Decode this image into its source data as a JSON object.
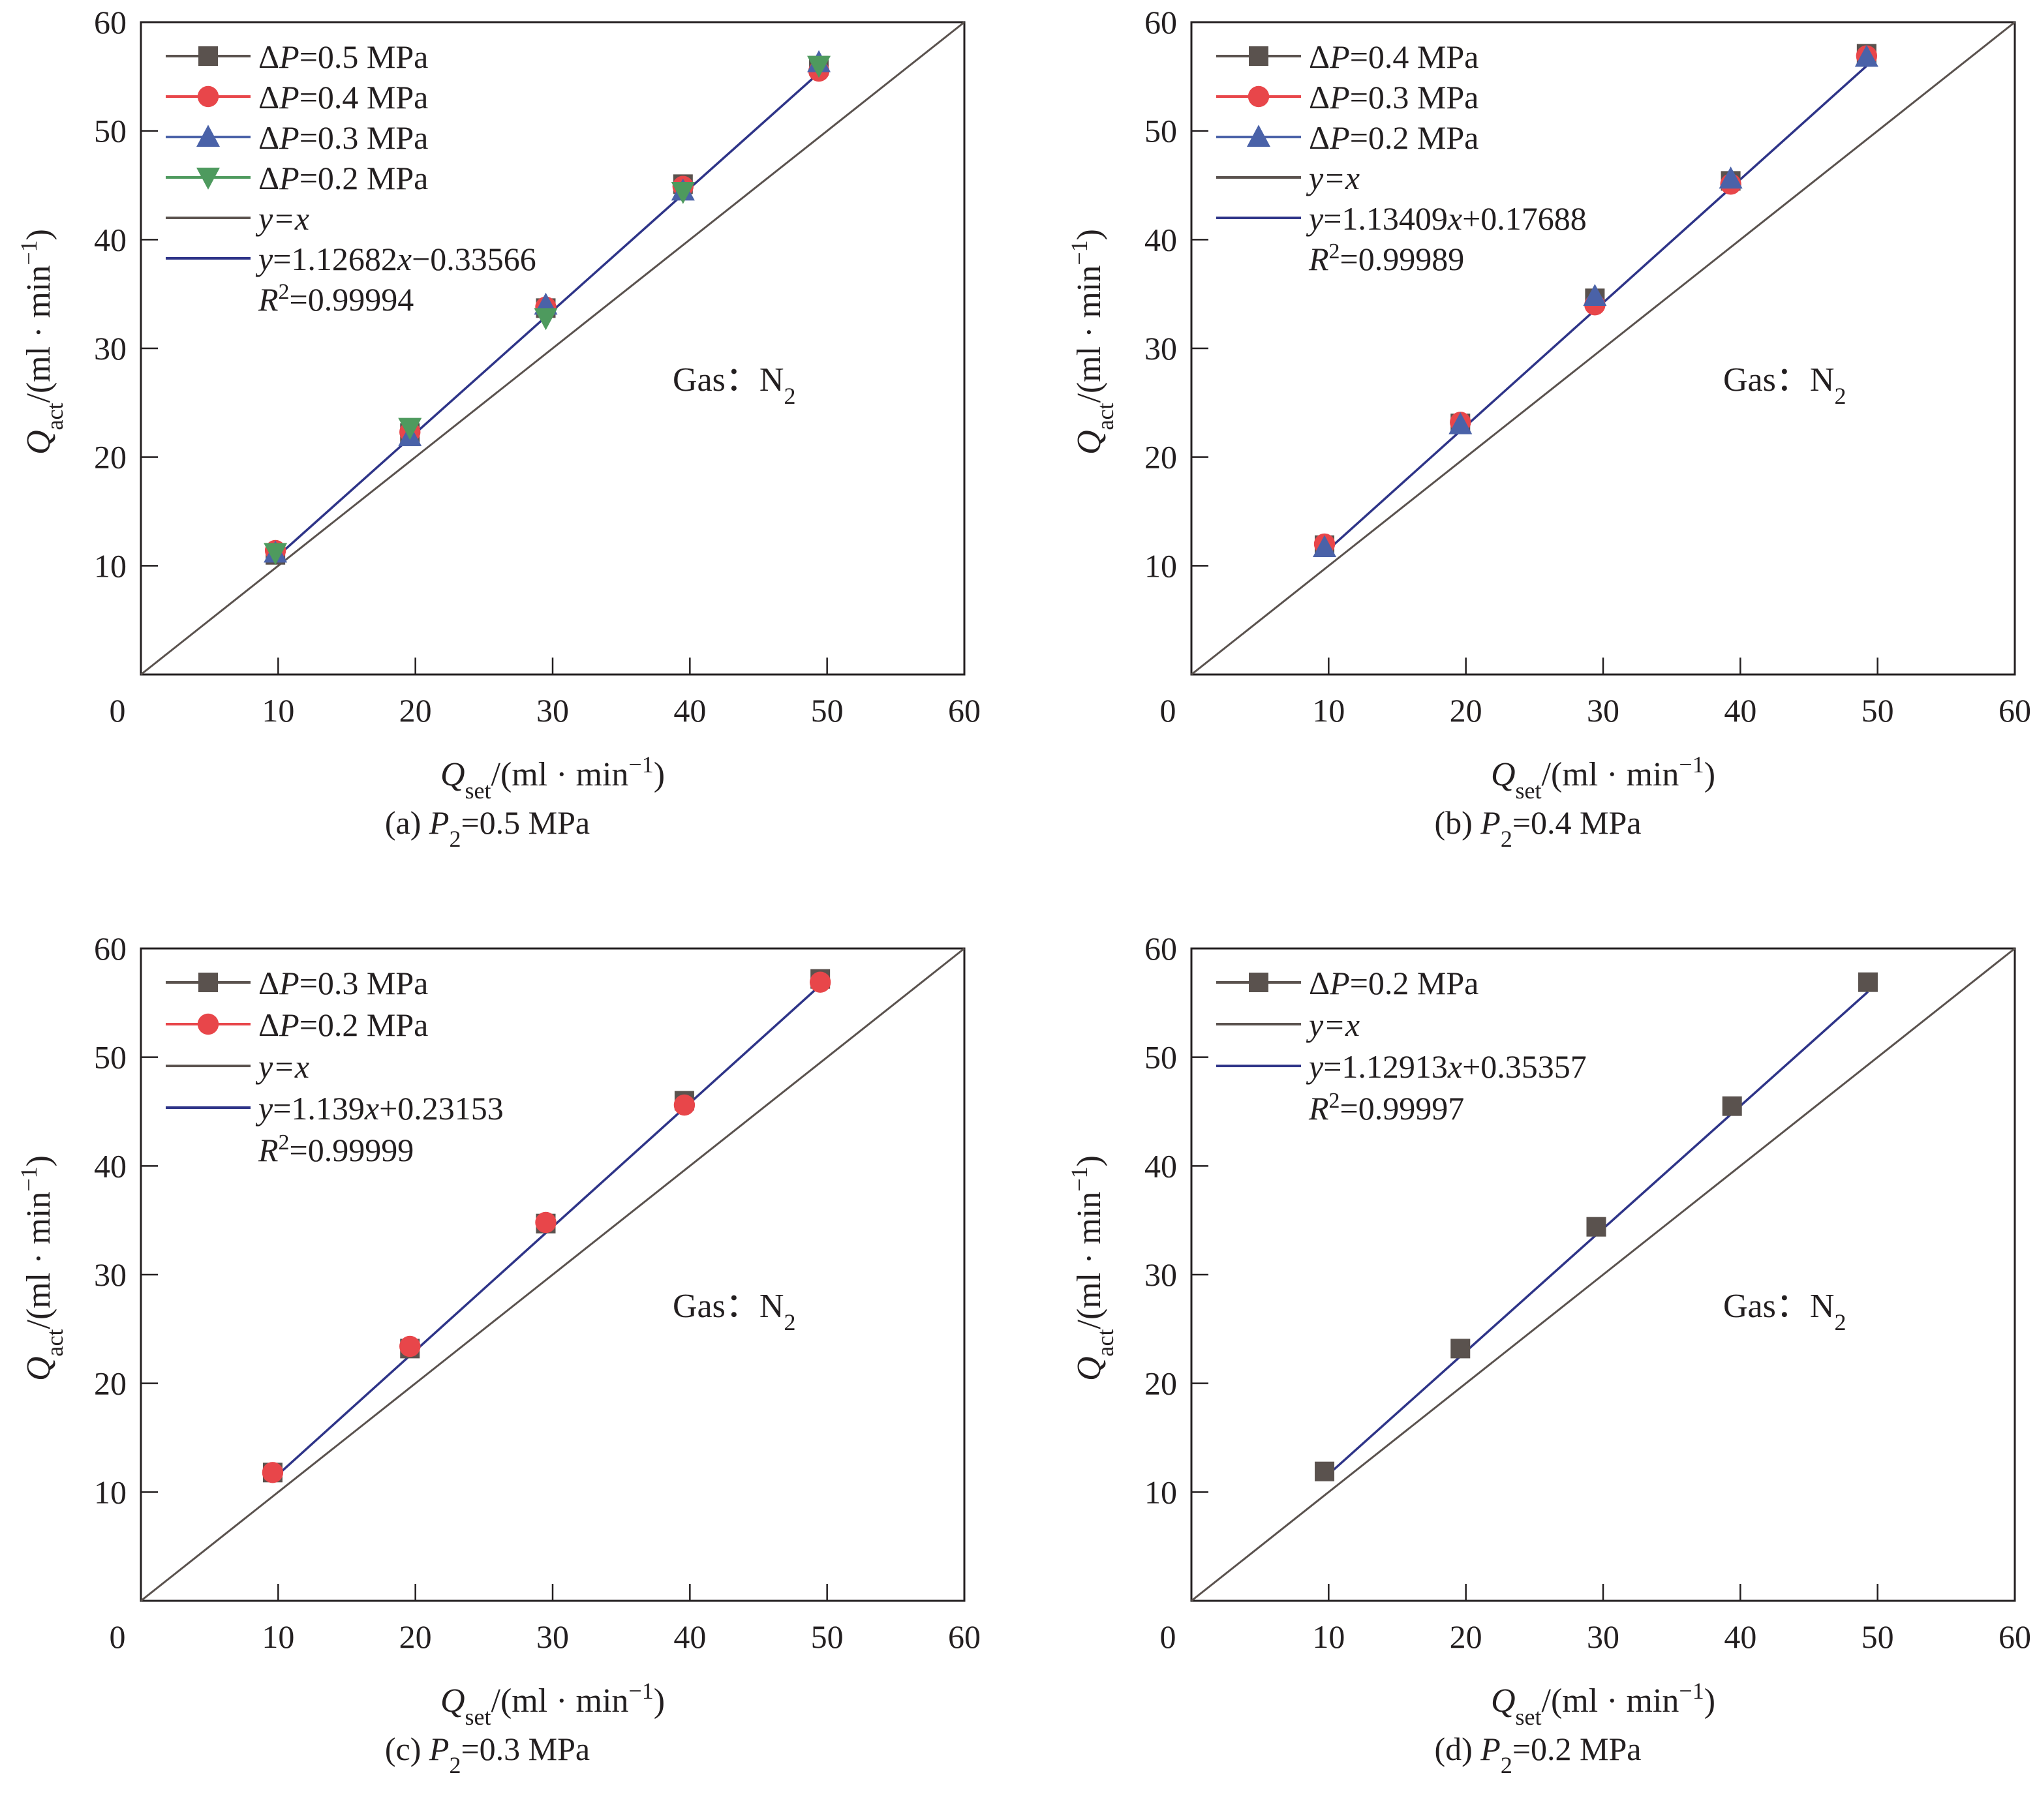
{
  "figure": {
    "panel_ids": [
      "a",
      "b",
      "c",
      "d"
    ]
  },
  "colors": {
    "square": "#5a524e",
    "circle": "#e8464a",
    "triangle_up": "#4a62a8",
    "triangle_down": "#4e9a5e",
    "identity_line": "#5a524e",
    "fit_line": "#2e3488",
    "axis": "#231f20"
  },
  "chart_data": [
    {
      "type": "scatter",
      "panel": "a",
      "caption": {
        "prefix": "(a) ",
        "var": "P",
        "sub": "2",
        "suffix": "=0.5 MPa"
      },
      "xlabel": {
        "var": "Q",
        "sub": "set",
        "unit": "/(ml · min",
        "sup": "−1",
        "close": ")"
      },
      "ylabel": {
        "var": "Q",
        "sub": "act",
        "unit": "/(ml · min",
        "sup": "−1",
        "close": ")"
      },
      "xlim": [
        0,
        60
      ],
      "ylim": [
        0,
        60
      ],
      "xticks": [
        "0",
        "10",
        "20",
        "30",
        "40",
        "50",
        "60"
      ],
      "yticks": [
        "10",
        "20",
        "30",
        "40",
        "50",
        "60"
      ],
      "grid": false,
      "legend_position": "top-left",
      "annotation": {
        "text": "Gas：N",
        "sub": "2"
      },
      "x": [
        9.8,
        19.6,
        29.5,
        39.5,
        49.4
      ],
      "series": [
        {
          "name": "ΔP=0.5 MPa",
          "marker": "square",
          "values": [
            11.0,
            22.2,
            33.7,
            45.1,
            56.0
          ]
        },
        {
          "name": "ΔP=0.4 MPa",
          "marker": "circle",
          "values": [
            11.4,
            22.3,
            33.8,
            44.9,
            55.5
          ]
        },
        {
          "name": "ΔP=0.3 MPa",
          "marker": "triangle_up",
          "values": [
            11.2,
            21.9,
            34.0,
            44.5,
            56.3
          ]
        },
        {
          "name": "ΔP=0.2 MPa",
          "marker": "triangle_down",
          "values": [
            11.2,
            22.7,
            32.8,
            44.4,
            56.0
          ]
        }
      ],
      "identity": {
        "label": "y=x"
      },
      "fit": {
        "label": "y=1.12682x−0.33566",
        "slope": 1.12682,
        "intercept": -0.33566,
        "r2_label": "R²=0.99994",
        "r2": "0.99994",
        "x_range": [
          9.8,
          49.4
        ]
      }
    },
    {
      "type": "scatter",
      "panel": "b",
      "caption": {
        "prefix": "(b) ",
        "var": "P",
        "sub": "2",
        "suffix": "=0.4 MPa"
      },
      "xlabel": {
        "var": "Q",
        "sub": "set",
        "unit": "/(ml · min",
        "sup": "−1",
        "close": ")"
      },
      "ylabel": {
        "var": "Q",
        "sub": "act",
        "unit": "/(ml · min",
        "sup": "−1",
        "close": ")"
      },
      "xlim": [
        0,
        60
      ],
      "ylim": [
        0,
        60
      ],
      "xticks": [
        "0",
        "10",
        "20",
        "30",
        "40",
        "50",
        "60"
      ],
      "yticks": [
        "10",
        "20",
        "30",
        "40",
        "50",
        "60"
      ],
      "grid": false,
      "legend_position": "top-left",
      "annotation": {
        "text": "Gas：N",
        "sub": "2"
      },
      "x": [
        9.7,
        19.6,
        29.4,
        39.3,
        49.2
      ],
      "series": [
        {
          "name": "ΔP=0.4 MPa",
          "marker": "square",
          "values": [
            11.9,
            23.1,
            34.6,
            45.4,
            57.1
          ]
        },
        {
          "name": "ΔP=0.3 MPa",
          "marker": "circle",
          "values": [
            12.0,
            23.2,
            34.0,
            45.1,
            56.9
          ]
        },
        {
          "name": "ΔP=0.2 MPa",
          "marker": "triangle_up",
          "values": [
            11.7,
            23.0,
            34.8,
            45.6,
            56.8
          ]
        }
      ],
      "identity": {
        "label": "y=x"
      },
      "fit": {
        "label": "y=1.13409x+0.17688",
        "slope": 1.13409,
        "intercept": 0.17688,
        "r2_label": "R²=0.99989",
        "r2": "0.99989",
        "x_range": [
          9.7,
          49.2
        ]
      }
    },
    {
      "type": "scatter",
      "panel": "c",
      "caption": {
        "prefix": "(c) ",
        "var": "P",
        "sub": "2",
        "suffix": "=0.3 MPa"
      },
      "xlabel": {
        "var": "Q",
        "sub": "set",
        "unit": "/(ml · min",
        "sup": "−1",
        "close": ")"
      },
      "ylabel": {
        "var": "Q",
        "sub": "act",
        "unit": "/(ml · min",
        "sup": "−1",
        "close": ")"
      },
      "xlim": [
        0,
        60
      ],
      "ylim": [
        0,
        60
      ],
      "xticks": [
        "0",
        "10",
        "20",
        "30",
        "40",
        "50",
        "60"
      ],
      "yticks": [
        "10",
        "20",
        "30",
        "40",
        "50",
        "60"
      ],
      "grid": false,
      "legend_position": "top-left",
      "annotation": {
        "text": "Gas：N",
        "sub": "2"
      },
      "x": [
        9.6,
        19.6,
        29.5,
        39.6,
        49.5
      ],
      "series": [
        {
          "name": "ΔP=0.3 MPa",
          "marker": "square",
          "values": [
            11.8,
            23.2,
            34.7,
            46.0,
            57.2
          ]
        },
        {
          "name": "ΔP=0.2 MPa",
          "marker": "circle",
          "values": [
            11.8,
            23.4,
            34.8,
            45.6,
            56.9
          ]
        }
      ],
      "identity": {
        "label": "y=x"
      },
      "fit": {
        "label": "y=1.139x+0.23153",
        "slope": 1.139,
        "intercept": 0.23153,
        "r2_label": "R²=0.99999",
        "r2": "0.99999",
        "x_range": [
          9.6,
          49.5
        ]
      }
    },
    {
      "type": "scatter",
      "panel": "d",
      "caption": {
        "prefix": "(d) ",
        "var": "P",
        "sub": "2",
        "suffix": "=0.2 MPa"
      },
      "xlabel": {
        "var": "Q",
        "sub": "set",
        "unit": "/(ml · min",
        "sup": "−1",
        "close": ")"
      },
      "ylabel": {
        "var": "Q",
        "sub": "act",
        "unit": "/(ml · min",
        "sup": "−1",
        "close": ")"
      },
      "xlim": [
        0,
        60
      ],
      "ylim": [
        0,
        60
      ],
      "xticks": [
        "0",
        "10",
        "20",
        "30",
        "40",
        "50",
        "60"
      ],
      "yticks": [
        "10",
        "20",
        "30",
        "40",
        "50",
        "60"
      ],
      "grid": false,
      "legend_position": "top-left",
      "annotation": {
        "text": "Gas：N",
        "sub": "2"
      },
      "x": [
        9.7,
        19.6,
        29.5,
        39.4,
        49.3
      ],
      "series": [
        {
          "name": "ΔP=0.2 MPa",
          "marker": "square",
          "values": [
            11.9,
            23.2,
            34.4,
            45.5,
            56.9
          ]
        }
      ],
      "identity": {
        "label": "y=x"
      },
      "fit": {
        "label": "y=1.12913x+0.35357",
        "slope": 1.12913,
        "intercept": 0.35357,
        "r2_label": "R²=0.99997",
        "r2": "0.99997",
        "x_range": [
          9.7,
          49.3
        ]
      }
    }
  ]
}
